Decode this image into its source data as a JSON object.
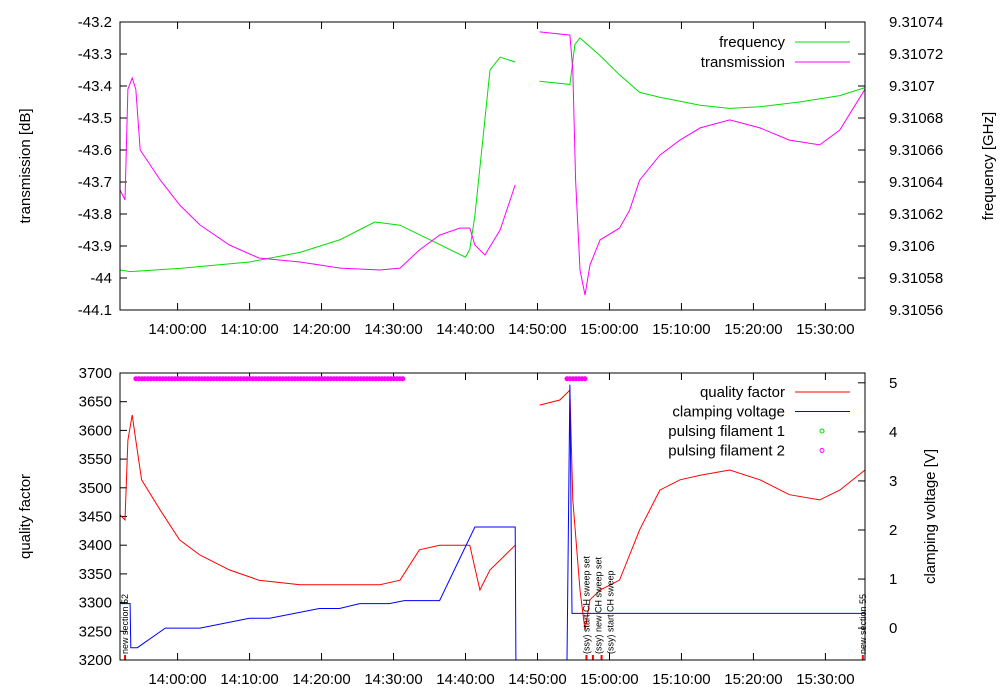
{
  "chart_data": [
    {
      "type": "line",
      "panel": "top",
      "ylabel": "transmission [dB]",
      "y2label": "frequency [GHz]",
      "xlim": [
        "13:52",
        "15:35.5"
      ],
      "ylim": [
        -44.1,
        -43.2
      ],
      "y2lim": [
        9.31056,
        9.31074
      ],
      "xticks": [
        "14:00:00",
        "14:10:00",
        "14:20:00",
        "14:30:00",
        "14:40:00",
        "14:50:00",
        "15:00:00",
        "15:10:00",
        "15:20:00",
        "15:30:00"
      ],
      "yticks": [
        "-44.1",
        "-44",
        "-43.9",
        "-43.8",
        "-43.7",
        "-43.6",
        "-43.5",
        "-43.4",
        "-43.3",
        "-43.2"
      ],
      "y2ticks": [
        "9.31056",
        "9.31058",
        "9.3106",
        "9.31062",
        "9.31064",
        "9.31066",
        "9.31068",
        "9.3107",
        "9.31072",
        "9.31074"
      ],
      "legend_position": "top-right",
      "series": [
        {
          "name": "frequency",
          "axis": "y2",
          "color": "#00e000",
          "points": [
            [
              "13:52",
              9.310585
            ],
            [
              "13:53.4",
              9.310584
            ],
            [
              "14:00.3",
              9.310586
            ],
            [
              "14:10",
              9.31059
            ],
            [
              "14:17",
              9.310596
            ],
            [
              "14:22.6",
              9.310604
            ],
            [
              "14:27.4",
              9.310615
            ],
            [
              "14:30.9",
              9.310613
            ],
            [
              "14:35",
              9.310604
            ],
            [
              "14:40",
              9.310593
            ],
            [
              "14:40.6",
              9.310598
            ],
            [
              "14:41.3",
              9.310619
            ],
            [
              "14:42.7",
              9.310679
            ],
            [
              "14:43.4",
              9.31071
            ],
            [
              "14:44.8",
              9.310718
            ],
            [
              "14:46.9",
              9.310715
            ],
            null,
            [
              "14:50.3",
              9.310703
            ],
            [
              "14:54.5",
              9.310701
            ],
            [
              "14:55.2",
              9.310726
            ],
            [
              "14:55.9",
              9.31073
            ],
            [
              "14:58.7",
              9.310719
            ],
            [
              "15:01.4",
              9.310707
            ],
            [
              "15:04.2",
              9.310696
            ],
            [
              "15:07",
              9.310693
            ],
            [
              "15:12.6",
              9.310688
            ],
            [
              "15:16.7",
              9.310686
            ],
            [
              "15:20.9",
              9.310687
            ],
            [
              "15:26.4",
              9.31069
            ],
            [
              "15:32",
              9.310694
            ],
            [
              "15:35.5",
              9.310699
            ]
          ]
        },
        {
          "name": "transmission",
          "axis": "y",
          "color": "#ff00ff",
          "points": [
            [
              "13:52",
              -43.725
            ],
            [
              "13:52.7",
              -43.756
            ],
            [
              "13:53.1",
              -43.41
            ],
            [
              "13:53.7",
              -43.375
            ],
            [
              "13:54.2",
              -43.41
            ],
            [
              "13:54.8",
              -43.6
            ],
            [
              "13:57.6",
              -43.694
            ],
            [
              "14:00.3",
              -43.772
            ],
            [
              "14:03.1",
              -43.834
            ],
            [
              "14:07.2",
              -43.897
            ],
            [
              "14:11.3",
              -43.9375
            ],
            [
              "14:17",
              -43.95
            ],
            [
              "14:22.6",
              -43.969
            ],
            [
              "14:28.1",
              -43.975
            ],
            [
              "14:30.9",
              -43.969
            ],
            [
              "14:33.6",
              -43.9125
            ],
            [
              "14:36.4",
              -43.866
            ],
            [
              "14:39.2",
              -43.844
            ],
            [
              "14:40.6",
              -43.844
            ],
            [
              "14:41.3",
              -43.897
            ],
            [
              "14:42.7",
              -43.928
            ],
            [
              "14:44.8",
              -43.85
            ],
            [
              "14:46.9",
              -43.709
            ],
            null,
            [
              "14:50.3",
              -43.231
            ],
            [
              "14:54.5",
              -43.241
            ],
            [
              "14:54.9",
              -43.35
            ],
            [
              "14:55.3",
              -43.694
            ],
            [
              "14:55.9",
              -43.975
            ],
            [
              "14:56.6",
              -44.053
            ],
            [
              "14:57.3",
              -43.959
            ],
            [
              "14:58.7",
              -43.881
            ],
            [
              "15:01.4",
              -43.844
            ],
            [
              "15:02.8",
              -43.788
            ],
            [
              "15:04.2",
              -43.694
            ],
            [
              "15:07",
              -43.616
            ],
            [
              "15:09.8",
              -43.569
            ],
            [
              "15:12.6",
              -43.531
            ],
            [
              "15:16.7",
              -43.506
            ],
            [
              "15:20.9",
              -43.531
            ],
            [
              "15:25",
              -43.569
            ],
            [
              "15:29.2",
              -43.584
            ],
            [
              "15:32",
              -43.5375
            ],
            [
              "15:35.5",
              -43.41
            ]
          ]
        }
      ]
    },
    {
      "type": "line",
      "panel": "bottom",
      "ylabel": "quality factor",
      "y2label": "clamping voltage [V]",
      "xlim": [
        "13:52",
        "15:35.5"
      ],
      "ylim": [
        3200,
        3700
      ],
      "y2lim": [
        -0.65,
        5.2
      ],
      "xticks": [
        "14:00:00",
        "14:10:00",
        "14:20:00",
        "14:30:00",
        "14:40:00",
        "14:50:00",
        "15:00:00",
        "15:10:00",
        "15:20:00",
        "15:30:00"
      ],
      "yticks": [
        "3200",
        "3250",
        "3300",
        "3350",
        "3400",
        "3450",
        "3500",
        "3550",
        "3600",
        "3650",
        "3700"
      ],
      "y2ticks": [
        "0",
        "1",
        "2",
        "3",
        "4",
        "5"
      ],
      "legend_position": "top-right",
      "series": [
        {
          "name": "quality factor",
          "axis": "y",
          "color": "#ff0000",
          "style": "line",
          "points": [
            [
              "13:52",
              3453
            ],
            [
              "13:52.7",
              3444
            ],
            [
              "13:53.1",
              3583
            ],
            [
              "13:53.7",
              3627
            ],
            [
              "13:54.2",
              3583
            ],
            [
              "13:55",
              3514
            ],
            [
              "13:57.6",
              3461
            ],
            [
              "14:00.3",
              3409
            ],
            [
              "14:03.1",
              3383
            ],
            [
              "14:07.2",
              3357
            ],
            [
              "14:11.3",
              3339
            ],
            [
              "14:17",
              3331
            ],
            [
              "14:22.6",
              3331
            ],
            [
              "14:28.1",
              3331
            ],
            [
              "14:30.9",
              3339
            ],
            [
              "14:33.6",
              3392
            ],
            [
              "14:36.4",
              3400
            ],
            [
              "14:40.6",
              3400
            ],
            [
              "14:42",
              3322
            ],
            [
              "14:43.4",
              3357
            ],
            [
              "14:44.8",
              3374
            ],
            [
              "14:46.9",
              3400
            ],
            null,
            [
              "14:50.3",
              3644
            ],
            [
              "14:53.1",
              3653
            ],
            [
              "14:54.5",
              3670
            ],
            [
              "14:54.9",
              3479
            ],
            [
              "14:55.9",
              3322
            ],
            [
              "14:56.6",
              3252
            ],
            [
              "14:57.3",
              3305
            ],
            [
              "14:58.7",
              3322
            ],
            [
              "15:01.4",
              3339
            ],
            [
              "15:02.8",
              3383
            ],
            [
              "15:04.2",
              3427
            ],
            [
              "15:07",
              3496
            ],
            [
              "15:09.8",
              3514
            ],
            [
              "15:12.6",
              3522
            ],
            [
              "15:16.7",
              3531
            ],
            [
              "15:20.9",
              3514
            ],
            [
              "15:25",
              3488
            ],
            [
              "15:29.2",
              3479
            ],
            [
              "15:32",
              3496
            ],
            [
              "15:35.5",
              3531
            ]
          ]
        },
        {
          "name": "clamping voltage",
          "axis": "y2",
          "color": "#0000ff",
          "style": "line",
          "points": [
            [
              "13:52",
              0.5
            ],
            [
              "13:53.4",
              0.5
            ],
            [
              "13:53.5",
              -0.4
            ],
            [
              "13:54.4",
              -0.4
            ],
            [
              "13:58.3",
              0
            ],
            [
              "14:03.1",
              0
            ],
            [
              "14:10",
              0.2
            ],
            [
              "14:12.8",
              0.2
            ],
            [
              "14:19.7",
              0.4
            ],
            [
              "14:22.5",
              0.4
            ],
            [
              "14:25.3",
              0.5
            ],
            [
              "14:29.4",
              0.5
            ],
            [
              "14:31.5",
              0.56
            ],
            [
              "14:36.4",
              0.56
            ],
            [
              "14:41.3",
              2.06
            ],
            [
              "14:46.9",
              2.06
            ],
            [
              "14:47",
              -0.65
            ],
            null,
            [
              "14:54.1",
              -0.65
            ],
            [
              "14:54.5",
              4.96
            ],
            [
              "14:54.8",
              0.3
            ],
            [
              "15:35.5",
              0.3
            ]
          ]
        },
        {
          "name": "pulsing filament 1",
          "axis": "y",
          "color": "#00e000",
          "style": "points",
          "points": []
        },
        {
          "name": "pulsing filament 2",
          "axis": "y",
          "color": "#ff00ff",
          "style": "points",
          "ranges": [
            [
              "13:54.2",
              "14:31.5"
            ],
            [
              "14:54.1",
              "14:56.7"
            ]
          ],
          "value": 3690
        }
      ],
      "annotations": [
        {
          "time": "13:52.7",
          "text": "new section 52"
        },
        {
          "time": "14:56.8",
          "text": "(ssy) start CH sweep set"
        },
        {
          "time": "14:57.7",
          "text": "(ssy) new CH sweep set"
        },
        {
          "time": "14:58.9",
          "text": "(ssy) start CH sweep"
        },
        {
          "time": "15:35.2",
          "text": "new section 55"
        }
      ]
    }
  ]
}
